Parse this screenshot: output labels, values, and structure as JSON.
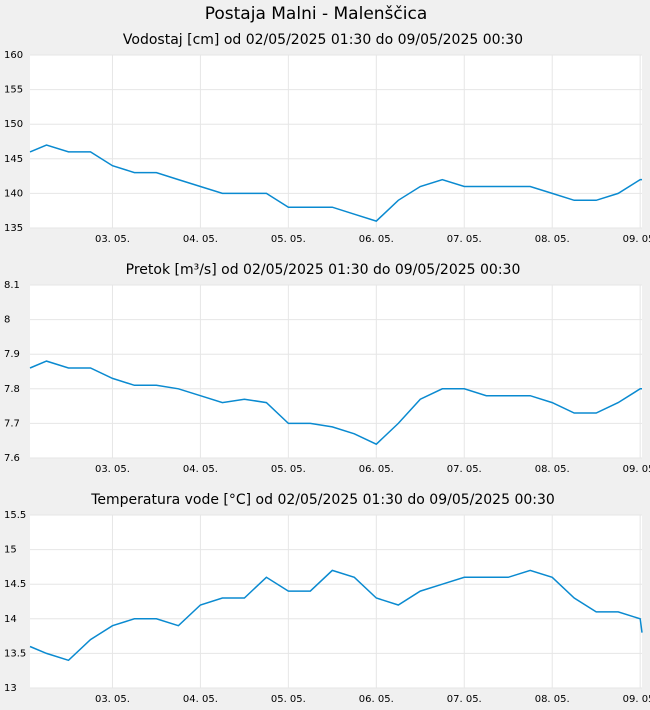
{
  "title": "Postaja Malni - Malenščica",
  "chart_data": [
    {
      "type": "line",
      "title": "Vodostaj [cm] od 02/05/2025 01:30 do 09/05/2025 00:30",
      "color": "#0a8ad0",
      "grid": true,
      "x": [
        "02/05/2025 01:30",
        "02/05/2025 06:00",
        "02/05/2025 12:00",
        "02/05/2025 18:00",
        "03/05/2025 00:00",
        "03/05/2025 06:00",
        "03/05/2025 12:00",
        "03/05/2025 18:00",
        "04/05/2025 00:00",
        "04/05/2025 06:00",
        "04/05/2025 12:00",
        "04/05/2025 18:00",
        "05/05/2025 00:00",
        "05/05/2025 06:00",
        "05/05/2025 12:00",
        "05/05/2025 18:00",
        "06/05/2025 00:00",
        "06/05/2025 06:00",
        "06/05/2025 12:00",
        "06/05/2025 18:00",
        "07/05/2025 00:00",
        "07/05/2025 06:00",
        "07/05/2025 12:00",
        "07/05/2025 18:00",
        "08/05/2025 00:00",
        "08/05/2025 06:00",
        "08/05/2025 12:00",
        "08/05/2025 18:00",
        "09/05/2025 00:00",
        "09/05/2025 00:30"
      ],
      "values": [
        146,
        147,
        146,
        146,
        144,
        143,
        143,
        142,
        141,
        140,
        140,
        140,
        138,
        138,
        138,
        137,
        136,
        139,
        141,
        142,
        141,
        141,
        141,
        141,
        140,
        139,
        139,
        140,
        142,
        142
      ],
      "xlim": [
        "02/05/2025 01:30",
        "09/05/2025 00:30"
      ],
      "xticks": [
        {
          "value": "03/05/2025 00:00",
          "label": "03. 05."
        },
        {
          "value": "04/05/2025 00:00",
          "label": "04. 05."
        },
        {
          "value": "05/05/2025 00:00",
          "label": "05. 05."
        },
        {
          "value": "06/05/2025 00:00",
          "label": "06. 05."
        },
        {
          "value": "07/05/2025 00:00",
          "label": "07. 05."
        },
        {
          "value": "08/05/2025 00:00",
          "label": "08. 05."
        },
        {
          "value": "09/05/2025 00:00",
          "label": "09. 05."
        }
      ],
      "ylim": [
        135,
        160
      ],
      "yticks": [
        135,
        140,
        145,
        150,
        155,
        160
      ]
    },
    {
      "type": "line",
      "title": "Pretok [m³/s] od 02/05/2025 01:30 do 09/05/2025 00:30",
      "color": "#0a8ad0",
      "grid": true,
      "x": [
        "02/05/2025 01:30",
        "02/05/2025 06:00",
        "02/05/2025 12:00",
        "02/05/2025 18:00",
        "03/05/2025 00:00",
        "03/05/2025 06:00",
        "03/05/2025 12:00",
        "03/05/2025 18:00",
        "04/05/2025 00:00",
        "04/05/2025 06:00",
        "04/05/2025 12:00",
        "04/05/2025 18:00",
        "05/05/2025 00:00",
        "05/05/2025 06:00",
        "05/05/2025 12:00",
        "05/05/2025 18:00",
        "06/05/2025 00:00",
        "06/05/2025 06:00",
        "06/05/2025 12:00",
        "06/05/2025 18:00",
        "07/05/2025 00:00",
        "07/05/2025 06:00",
        "07/05/2025 12:00",
        "07/05/2025 18:00",
        "08/05/2025 00:00",
        "08/05/2025 06:00",
        "08/05/2025 12:00",
        "08/05/2025 18:00",
        "09/05/2025 00:00",
        "09/05/2025 00:30"
      ],
      "values": [
        7.86,
        7.88,
        7.86,
        7.86,
        7.83,
        7.81,
        7.81,
        7.8,
        7.78,
        7.76,
        7.77,
        7.76,
        7.7,
        7.7,
        7.69,
        7.67,
        7.64,
        7.7,
        7.77,
        7.8,
        7.8,
        7.78,
        7.78,
        7.78,
        7.76,
        7.73,
        7.73,
        7.76,
        7.8,
        7.8
      ],
      "xlim": [
        "02/05/2025 01:30",
        "09/05/2025 00:30"
      ],
      "xticks": [
        {
          "value": "03/05/2025 00:00",
          "label": "03. 05."
        },
        {
          "value": "04/05/2025 00:00",
          "label": "04. 05."
        },
        {
          "value": "05/05/2025 00:00",
          "label": "05. 05."
        },
        {
          "value": "06/05/2025 00:00",
          "label": "06. 05."
        },
        {
          "value": "07/05/2025 00:00",
          "label": "07. 05."
        },
        {
          "value": "08/05/2025 00:00",
          "label": "08. 05."
        },
        {
          "value": "09/05/2025 00:00",
          "label": "09. 05."
        }
      ],
      "ylim": [
        7.6,
        8.1
      ],
      "yticks": [
        7.6,
        7.7,
        7.8,
        7.9,
        8,
        8.1
      ]
    },
    {
      "type": "line",
      "title": "Temperatura vode [°C] od 02/05/2025 01:30 do 09/05/2025 00:30",
      "color": "#0a8ad0",
      "grid": true,
      "x": [
        "02/05/2025 01:30",
        "02/05/2025 06:00",
        "02/05/2025 12:00",
        "02/05/2025 18:00",
        "03/05/2025 00:00",
        "03/05/2025 06:00",
        "03/05/2025 12:00",
        "03/05/2025 18:00",
        "04/05/2025 00:00",
        "04/05/2025 06:00",
        "04/05/2025 12:00",
        "04/05/2025 18:00",
        "05/05/2025 00:00",
        "05/05/2025 06:00",
        "05/05/2025 12:00",
        "05/05/2025 18:00",
        "06/05/2025 00:00",
        "06/05/2025 06:00",
        "06/05/2025 12:00",
        "06/05/2025 18:00",
        "07/05/2025 00:00",
        "07/05/2025 06:00",
        "07/05/2025 12:00",
        "07/05/2025 18:00",
        "08/05/2025 00:00",
        "08/05/2025 06:00",
        "08/05/2025 12:00",
        "08/05/2025 18:00",
        "09/05/2025 00:00",
        "09/05/2025 00:30"
      ],
      "values": [
        13.6,
        13.5,
        13.4,
        13.7,
        13.9,
        14,
        14,
        13.9,
        14.2,
        14.3,
        14.3,
        14.6,
        14.4,
        14.4,
        14.7,
        14.6,
        14.3,
        14.2,
        14.4,
        14.5,
        14.6,
        14.6,
        14.6,
        14.7,
        14.6,
        14.3,
        14.1,
        14.1,
        14,
        13.8
      ],
      "xlim": [
        "02/05/2025 01:30",
        "09/05/2025 00:30"
      ],
      "xticks": [
        {
          "value": "03/05/2025 00:00",
          "label": "03. 05."
        },
        {
          "value": "04/05/2025 00:00",
          "label": "04. 05."
        },
        {
          "value": "05/05/2025 00:00",
          "label": "05. 05."
        },
        {
          "value": "06/05/2025 00:00",
          "label": "06. 05."
        },
        {
          "value": "07/05/2025 00:00",
          "label": "07. 05."
        },
        {
          "value": "08/05/2025 00:00",
          "label": "08. 05."
        },
        {
          "value": "09/05/2025 00:00",
          "label": "09. 05."
        }
      ],
      "ylim": [
        13,
        15.5
      ],
      "yticks": [
        13,
        13.5,
        14,
        14.5,
        15,
        15.5
      ]
    }
  ]
}
